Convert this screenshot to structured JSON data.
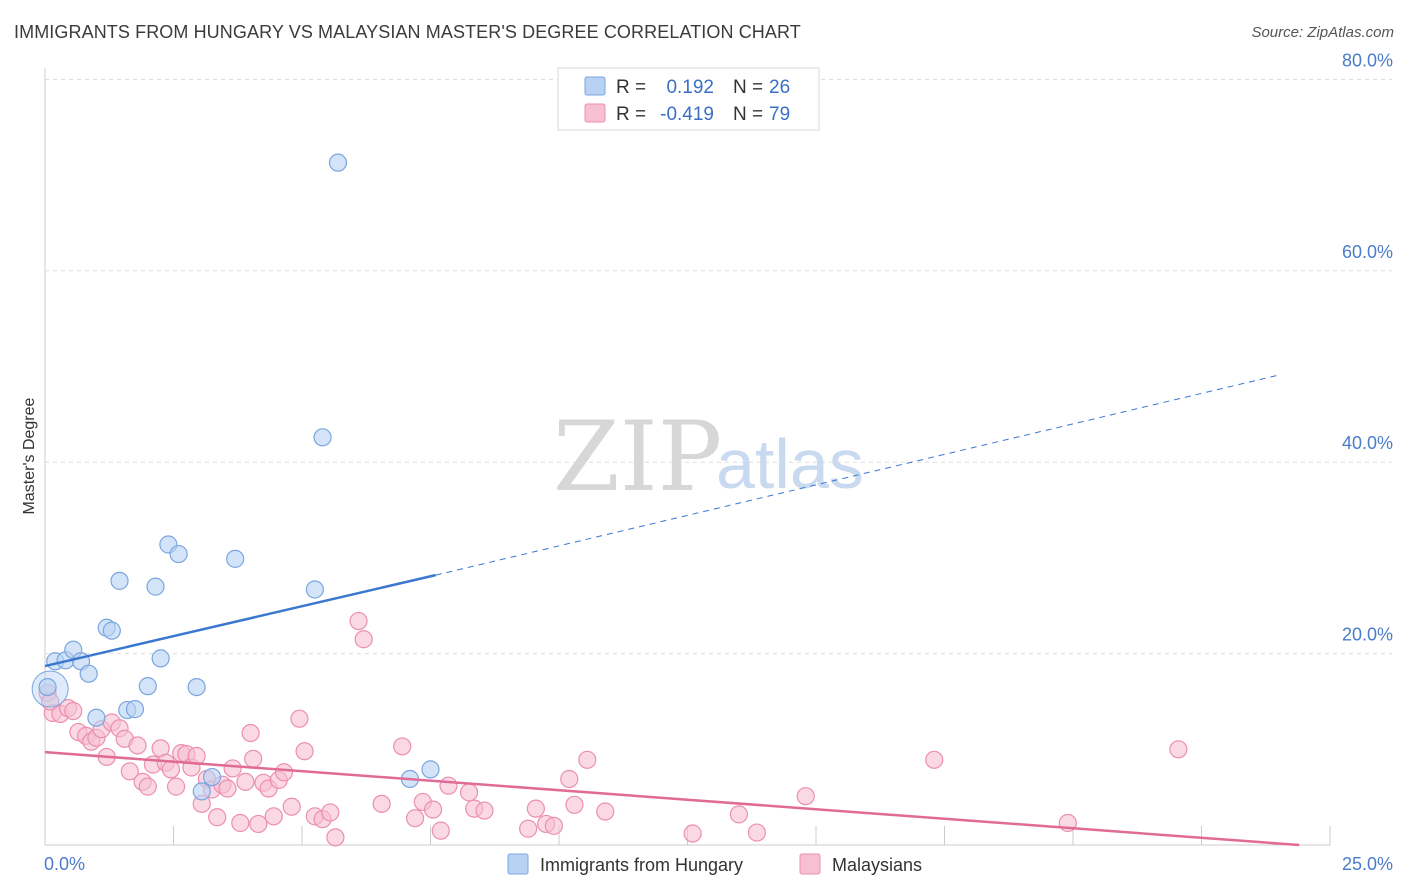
{
  "title": "IMMIGRANTS FROM HUNGARY VS MALAYSIAN MASTER'S DEGREE CORRELATION CHART",
  "source": "Source: ZipAtlas.com",
  "watermark": {
    "zip": "ZIP",
    "atlas": "atlas"
  },
  "colors": {
    "blue_fill": "#b8d2f4",
    "blue_stroke": "#7aa6e0",
    "blue_line": "#3a78d0",
    "pink_fill": "#f7c0d2",
    "pink_stroke": "#ec8fae",
    "pink_line": "#e06b97",
    "grid": "#dddddd",
    "axis": "#cccccc"
  },
  "legend": {
    "rows": [
      {
        "r_label": "R =",
        "r_value": "0.192",
        "n_label": "N =",
        "n_value": "26"
      },
      {
        "r_label": "R =",
        "r_value": "-0.419",
        "n_label": "N =",
        "n_value": "79"
      }
    ]
  },
  "chart_data": {
    "type": "scatter",
    "title": "IMMIGRANTS FROM HUNGARY VS MALAYSIAN MASTER'S DEGREE CORRELATION CHART",
    "xlabel": "",
    "ylabel": "Master's Degree",
    "xlim": [
      0,
      25
    ],
    "ylim": [
      0,
      82
    ],
    "x_tick_labels": [
      "0.0%",
      "25.0%"
    ],
    "y_ticks": [
      20,
      40,
      60,
      80
    ],
    "y_tick_labels": [
      "20.0%",
      "40.0%",
      "60.0%",
      "80.0%"
    ],
    "series": [
      {
        "name": "Immigrants from Hungary",
        "r": 0.192,
        "n": 26,
        "points": [
          [
            0.05,
            16.5
          ],
          [
            0.2,
            19.2
          ],
          [
            0.4,
            19.3
          ],
          [
            0.55,
            20.4
          ],
          [
            0.7,
            19.2
          ],
          [
            0.85,
            17.9
          ],
          [
            1.0,
            13.3
          ],
          [
            1.2,
            22.7
          ],
          [
            1.3,
            22.4
          ],
          [
            1.45,
            27.6
          ],
          [
            1.6,
            14.1
          ],
          [
            1.75,
            14.2
          ],
          [
            2.0,
            16.6
          ],
          [
            2.15,
            27.0
          ],
          [
            2.25,
            19.5
          ],
          [
            2.4,
            31.4
          ],
          [
            2.6,
            30.4
          ],
          [
            2.95,
            16.5
          ],
          [
            3.05,
            5.6
          ],
          [
            3.25,
            7.1
          ],
          [
            3.7,
            29.9
          ],
          [
            5.25,
            26.7
          ],
          [
            5.4,
            42.6
          ],
          [
            5.7,
            71.3
          ],
          [
            7.1,
            6.9
          ],
          [
            7.5,
            7.9
          ]
        ],
        "trend": {
          "x0": 0,
          "y0": 18.7,
          "x1": 7.6,
          "y1": 28.2,
          "dash_x1": 24.0,
          "dash_y1": 49.1
        }
      },
      {
        "name": "Malaysians",
        "r": -0.419,
        "n": 79,
        "points": [
          [
            0.05,
            15.9
          ],
          [
            0.15,
            13.8
          ],
          [
            0.3,
            13.7
          ],
          [
            0.45,
            14.3
          ],
          [
            0.55,
            14.0
          ],
          [
            0.65,
            11.8
          ],
          [
            0.8,
            11.4
          ],
          [
            0.9,
            10.8
          ],
          [
            1.0,
            11.2
          ],
          [
            1.1,
            12.1
          ],
          [
            1.2,
            9.2
          ],
          [
            1.3,
            12.8
          ],
          [
            1.45,
            12.2
          ],
          [
            1.55,
            11.1
          ],
          [
            1.65,
            7.7
          ],
          [
            1.8,
            10.4
          ],
          [
            1.9,
            6.6
          ],
          [
            2.0,
            6.1
          ],
          [
            2.1,
            8.4
          ],
          [
            2.25,
            10.1
          ],
          [
            2.35,
            8.6
          ],
          [
            2.45,
            7.9
          ],
          [
            2.55,
            6.1
          ],
          [
            2.65,
            9.6
          ],
          [
            2.75,
            9.5
          ],
          [
            2.85,
            8.1
          ],
          [
            2.95,
            9.3
          ],
          [
            3.05,
            4.3
          ],
          [
            3.15,
            6.9
          ],
          [
            3.25,
            5.8
          ],
          [
            3.35,
            2.9
          ],
          [
            3.45,
            6.3
          ],
          [
            3.55,
            5.9
          ],
          [
            3.65,
            8.0
          ],
          [
            3.8,
            2.3
          ],
          [
            3.9,
            6.6
          ],
          [
            4.0,
            11.7
          ],
          [
            4.05,
            9.0
          ],
          [
            4.15,
            2.2
          ],
          [
            4.25,
            6.5
          ],
          [
            4.35,
            5.9
          ],
          [
            4.45,
            3.0
          ],
          [
            4.55,
            6.8
          ],
          [
            4.65,
            7.6
          ],
          [
            4.8,
            4.0
          ],
          [
            4.95,
            13.2
          ],
          [
            5.05,
            9.8
          ],
          [
            5.25,
            3.0
          ],
          [
            5.4,
            2.7
          ],
          [
            5.55,
            3.4
          ],
          [
            5.65,
            0.8
          ],
          [
            6.1,
            23.4
          ],
          [
            6.2,
            21.5
          ],
          [
            6.55,
            4.3
          ],
          [
            6.95,
            10.3
          ],
          [
            7.2,
            2.8
          ],
          [
            7.35,
            4.5
          ],
          [
            7.55,
            3.7
          ],
          [
            7.7,
            1.5
          ],
          [
            7.85,
            6.2
          ],
          [
            8.25,
            5.5
          ],
          [
            8.35,
            3.8
          ],
          [
            8.55,
            3.6
          ],
          [
            9.4,
            1.7
          ],
          [
            9.55,
            3.8
          ],
          [
            9.75,
            2.2
          ],
          [
            9.9,
            2.0
          ],
          [
            10.2,
            6.9
          ],
          [
            10.3,
            4.2
          ],
          [
            10.55,
            8.9
          ],
          [
            10.9,
            3.5
          ],
          [
            12.6,
            1.2
          ],
          [
            13.5,
            3.2
          ],
          [
            13.85,
            1.3
          ],
          [
            14.8,
            5.1
          ],
          [
            17.3,
            8.9
          ],
          [
            19.9,
            2.3
          ],
          [
            22.05,
            10.0
          ],
          [
            0.1,
            15.0
          ]
        ],
        "trend": {
          "x0": 0,
          "y0": 9.7,
          "x1": 24.4,
          "y1": 0.0
        }
      }
    ],
    "bottom_legend": [
      "Immigrants from Hungary",
      "Malaysians"
    ]
  }
}
